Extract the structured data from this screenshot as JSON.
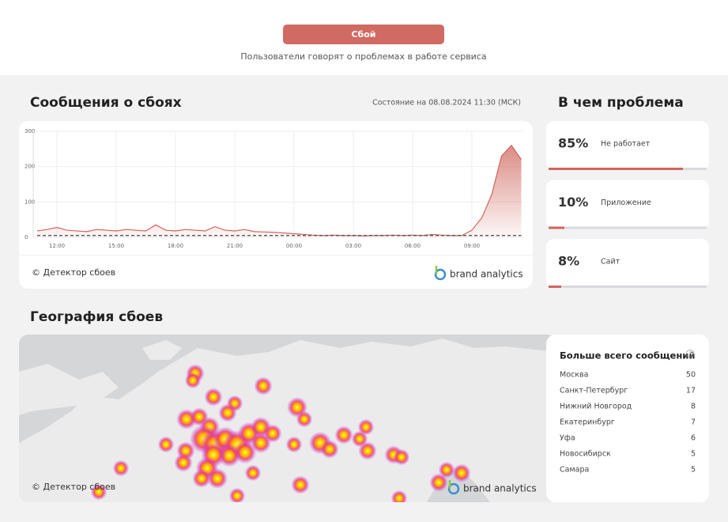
{
  "header": {
    "status_button": "Сбой",
    "subtitle": "Пользователи говорят о проблемах в работе сервиса"
  },
  "reports": {
    "title": "Сообщения о сбоях",
    "status": "Состояние на 08.08.2024 11:30 (МСК)",
    "copyright": "© Детектор сбоев",
    "brand": "brand analytics"
  },
  "chart_data": {
    "type": "line",
    "categories": [
      null,
      null,
      "12:00",
      null,
      null,
      null,
      null,
      null,
      "15:00",
      null,
      null,
      null,
      null,
      null,
      "18:00",
      null,
      null,
      null,
      null,
      null,
      "21:00",
      null,
      null,
      null,
      null,
      null,
      "00:00",
      null,
      null,
      null,
      null,
      null,
      "03:00",
      null,
      null,
      null,
      null,
      null,
      "06:00",
      null,
      null,
      null,
      null,
      null,
      "09:00",
      null,
      null,
      null,
      null,
      null
    ],
    "series": [
      {
        "color": "#d0655c",
        "values": [
          18,
          22,
          28,
          20,
          18,
          16,
          22,
          20,
          18,
          22,
          20,
          18,
          35,
          20,
          18,
          22,
          20,
          18,
          30,
          20,
          18,
          22,
          16,
          15,
          14,
          12,
          10,
          8,
          6,
          5,
          6,
          5,
          5,
          4,
          5,
          5,
          6,
          5,
          6,
          5,
          8,
          6,
          5,
          5,
          20,
          55,
          120,
          230,
          260,
          220
        ]
      },
      {
        "color": "#444444",
        "values": [
          5,
          5,
          5,
          5,
          5,
          5,
          5,
          5,
          5,
          5,
          5,
          5,
          5,
          5,
          5,
          5,
          5,
          5,
          5,
          5,
          5,
          5,
          5,
          5,
          5,
          5,
          5,
          5,
          5,
          5,
          5,
          5,
          5,
          5,
          5,
          5,
          5,
          5,
          5,
          5,
          5,
          5,
          5,
          5,
          5,
          5,
          5,
          5,
          5,
          5
        ]
      }
    ],
    "ylim": [
      0,
      300
    ],
    "yticks": [
      0,
      100,
      200,
      300
    ],
    "grid": true
  },
  "problems": {
    "title": "В чем проблема",
    "items": [
      {
        "value": 85,
        "value_label": "85%",
        "label": "Не работает"
      },
      {
        "value": 10,
        "value_label": "10%",
        "label": "Приложение"
      },
      {
        "value": 8,
        "value_label": "8%",
        "label": "Сайт"
      }
    ]
  },
  "geography": {
    "title": "География сбоев",
    "copyright": "© Детектор сбоев",
    "brand": "brand analytics",
    "top_title": "Больше всего сообщений",
    "help_icon": "?",
    "rows": [
      [
        "Москва",
        "50"
      ],
      [
        "Санкт-Петербург",
        "17"
      ],
      [
        "Нижний Новгород",
        "8"
      ],
      [
        "Екатеринбург",
        "7"
      ],
      [
        "Уфа",
        "6"
      ],
      [
        "Новосибирск",
        "5"
      ],
      [
        "Самара",
        "5"
      ]
    ]
  }
}
